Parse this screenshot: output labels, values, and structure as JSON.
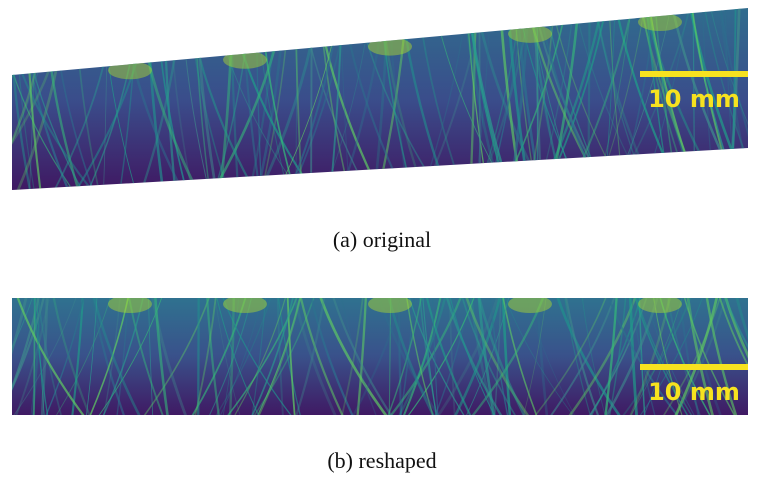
{
  "panels": [
    {
      "caption": "(a) original",
      "scale_bar": "10 mm"
    },
    {
      "caption": "(b) reshaped",
      "scale_bar": "10 mm"
    }
  ]
}
